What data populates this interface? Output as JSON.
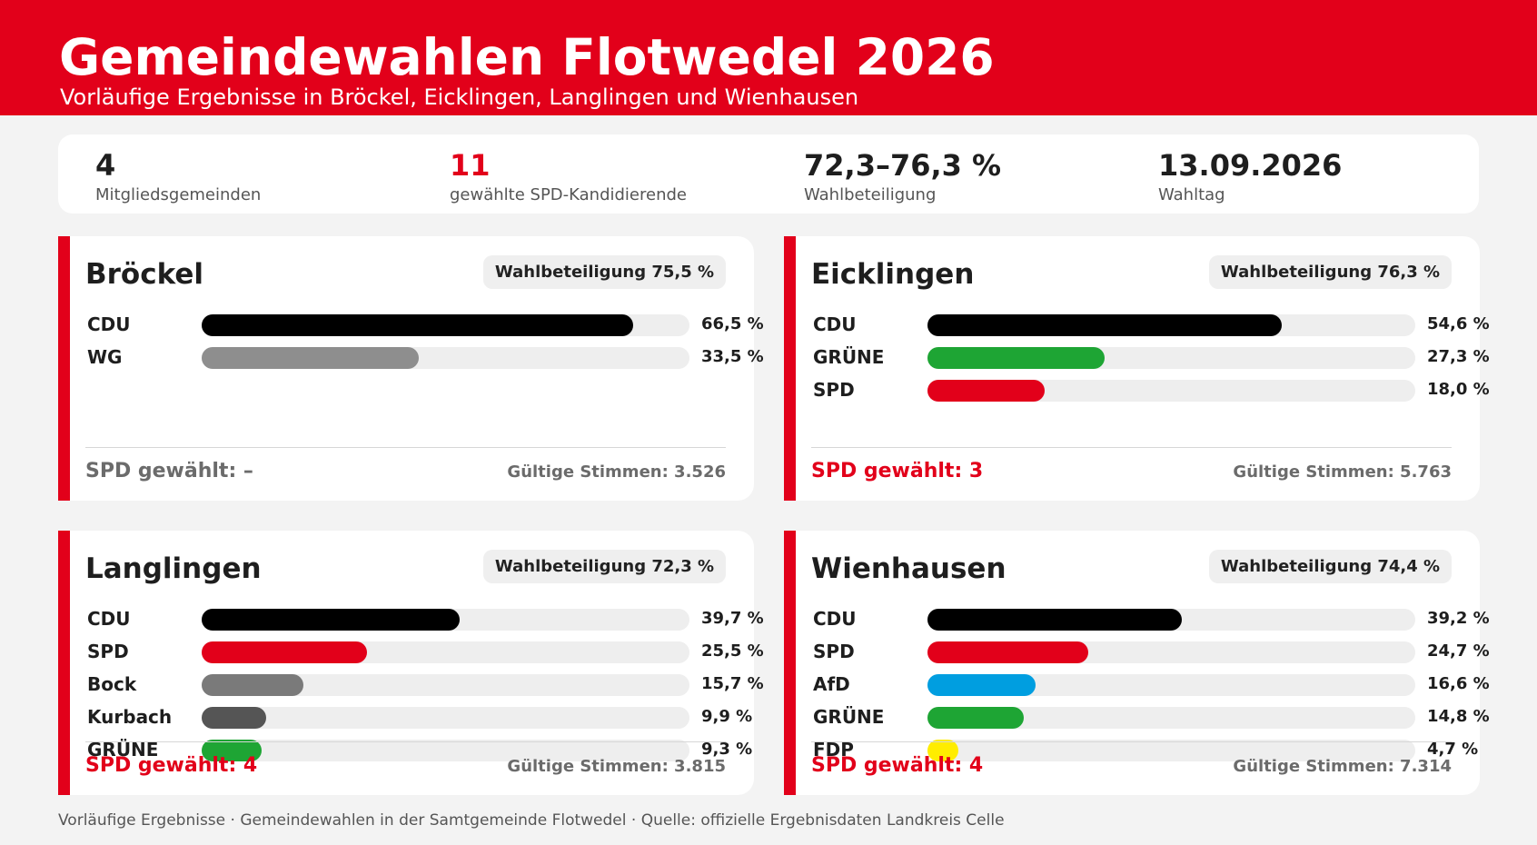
{
  "header": {
    "title": "Gemeindewahlen Flotwedel 2026",
    "subtitle": "Vorläufige Ergebnisse in Bröckel, Eicklingen, Langlingen und Wienhausen"
  },
  "kpis": [
    {
      "value": "4",
      "label": "Mitgliedsgemeinden",
      "accent": false
    },
    {
      "value": "11",
      "label": "gewählte SPD-Kandidierende",
      "accent": true
    },
    {
      "value": "72,3–76,3 %",
      "label": "Wahlbeteiligung",
      "accent": false
    },
    {
      "value": "13.09.2026",
      "label": "Wahltag",
      "accent": false
    }
  ],
  "cards": [
    {
      "name": "Bröckel",
      "turnout": "Wahlbeteiligung 75,5 %",
      "spd_elected": "SPD gewählt: –",
      "spd_elected_none": true,
      "valid_votes": "Gültige Stimmen: 3.526",
      "parties": [
        {
          "party": "CDU",
          "value": 66.5,
          "label": "66,5 %",
          "color": "#000000"
        },
        {
          "party": "WG",
          "value": 33.5,
          "label": "33,5 %",
          "color": "#8e8e8e"
        }
      ]
    },
    {
      "name": "Eicklingen",
      "turnout": "Wahlbeteiligung 76,3 %",
      "spd_elected": "SPD gewählt: 3",
      "spd_elected_none": false,
      "valid_votes": "Gültige Stimmen: 5.763",
      "parties": [
        {
          "party": "CDU",
          "value": 54.6,
          "label": "54,6 %",
          "color": "#000000"
        },
        {
          "party": "GRÜNE",
          "value": 27.3,
          "label": "27,3 %",
          "color": "#1ea534"
        },
        {
          "party": "SPD",
          "value": 18.0,
          "label": "18,0 %",
          "color": "#e2001a"
        }
      ]
    },
    {
      "name": "Langlingen",
      "turnout": "Wahlbeteiligung 72,3 %",
      "spd_elected": "SPD gewählt: 4",
      "spd_elected_none": false,
      "valid_votes": "Gültige Stimmen: 3.815",
      "parties": [
        {
          "party": "CDU",
          "value": 39.7,
          "label": "39,7 %",
          "color": "#000000"
        },
        {
          "party": "SPD",
          "value": 25.5,
          "label": "25,5 %",
          "color": "#e2001a"
        },
        {
          "party": "Bock",
          "value": 15.7,
          "label": "15,7 %",
          "color": "#7a7a7a"
        },
        {
          "party": "Kurbach",
          "value": 9.9,
          "label": "9,9 %",
          "color": "#555555"
        },
        {
          "party": "GRÜNE",
          "value": 9.3,
          "label": "9,3 %",
          "color": "#1ea534"
        }
      ]
    },
    {
      "name": "Wienhausen",
      "turnout": "Wahlbeteiligung 74,4 %",
      "spd_elected": "SPD gewählt: 4",
      "spd_elected_none": false,
      "valid_votes": "Gültige Stimmen: 7.314",
      "parties": [
        {
          "party": "CDU",
          "value": 39.2,
          "label": "39,2 %",
          "color": "#000000"
        },
        {
          "party": "SPD",
          "value": 24.7,
          "label": "24,7 %",
          "color": "#e2001a"
        },
        {
          "party": "AfD",
          "value": 16.6,
          "label": "16,6 %",
          "color": "#009ee0"
        },
        {
          "party": "GRÜNE",
          "value": 14.8,
          "label": "14,8 %",
          "color": "#1ea534"
        },
        {
          "party": "FDP",
          "value": 4.7,
          "label": "4,7 %",
          "color": "#ffed00"
        }
      ]
    }
  ],
  "footer": {
    "note": "Vorläufige Ergebnisse · Gemeindewahlen in der Samtgemeinde Flotwedel · Quelle: offizielle Ergebnisdaten Landkreis Celle"
  }
}
